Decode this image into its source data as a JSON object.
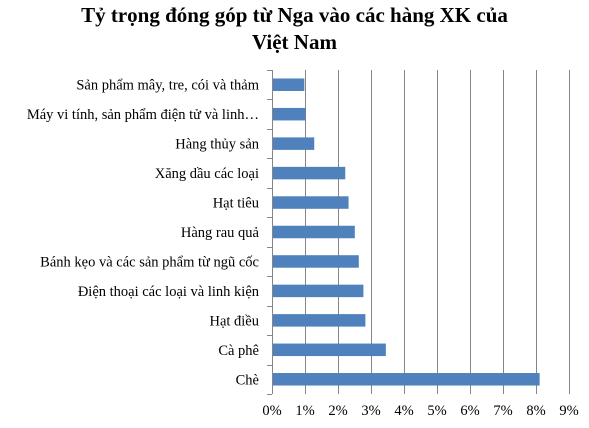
{
  "chart_data": {
    "type": "bar",
    "orientation": "horizontal",
    "title": "Tỷ trọng đóng góp từ Nga vào các hàng XK của Việt Nam",
    "title_lines": [
      "Tỷ trọng đóng góp từ Nga vào các hàng XK của",
      "Việt Nam"
    ],
    "categories": [
      "Sản phẩm mây, tre, cói và thảm",
      "Máy vi tính, sản phẩm điện tử và linh…",
      "Hàng thủy sản",
      "Xăng dầu các loại",
      "Hạt tiêu",
      "Hàng rau quả",
      "Bánh kẹo và các sản phẩm từ ngũ cốc",
      "Điện thoại các loại và linh kiện",
      "Hạt điều",
      "Cà phê",
      "Chè"
    ],
    "values": [
      0.0098,
      0.0102,
      0.0128,
      0.0222,
      0.0232,
      0.0251,
      0.0263,
      0.0277,
      0.0283,
      0.0345,
      0.0811
    ],
    "xlim": [
      0,
      0.09
    ],
    "x_ticks": [
      0,
      0.01,
      0.02,
      0.03,
      0.04,
      0.05,
      0.06,
      0.07,
      0.08,
      0.09
    ],
    "x_tick_labels": [
      "0%",
      "1%",
      "2%",
      "3%",
      "4%",
      "5%",
      "6%",
      "7%",
      "8%",
      "9%"
    ],
    "xlabel": "",
    "ylabel": "",
    "grid": "vertical",
    "legend": "none",
    "bar_color": "#4F81BD",
    "grid_color": "#868686"
  }
}
